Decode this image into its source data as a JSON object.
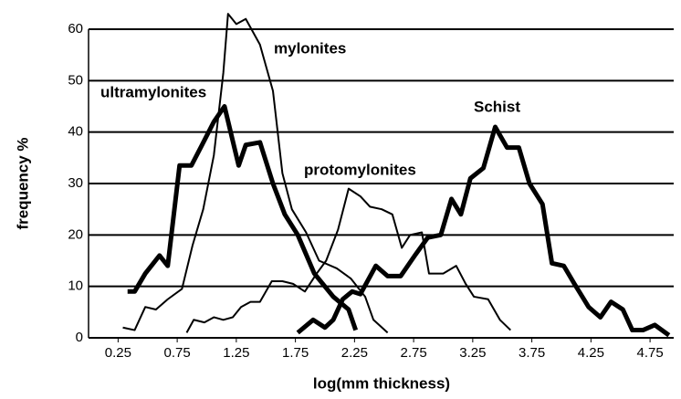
{
  "chart_data": {
    "type": "line",
    "xlabel": "log(mm thickness)",
    "ylabel": "frequency  %",
    "xlim": [
      0,
      4.95
    ],
    "ylim": [
      0,
      60
    ],
    "xticks": [
      0.25,
      0.75,
      1.25,
      1.75,
      2.25,
      2.75,
      3.25,
      3.75,
      4.25,
      4.75
    ],
    "yticks": [
      0,
      10,
      20,
      30,
      40,
      50,
      60
    ],
    "grid": true,
    "series": [
      {
        "name": "mylonites",
        "color": "#000000",
        "line_width": 2,
        "x": [
          0.29,
          0.39,
          0.48,
          0.57,
          0.67,
          0.79,
          0.88,
          0.97,
          1.06,
          1.14,
          1.18,
          1.25,
          1.33,
          1.45,
          1.56,
          1.64,
          1.72,
          1.84,
          1.95,
          2.1,
          2.22,
          2.34,
          2.41,
          2.53
        ],
        "values": [
          2,
          1.5,
          6,
          5.5,
          7.5,
          9.5,
          18,
          25,
          35.5,
          51.5,
          63,
          61,
          62,
          57,
          48,
          32,
          25,
          20.5,
          15,
          13.5,
          11.5,
          8,
          3.5,
          1
        ]
      },
      {
        "name": "ultramylonites",
        "color": "#000000",
        "line_width": 5,
        "x": [
          0.33,
          0.39,
          0.48,
          0.6,
          0.67,
          0.77,
          0.87,
          0.96,
          1.06,
          1.15,
          1.27,
          1.33,
          1.45,
          1.56,
          1.66,
          1.77,
          1.91,
          2.07,
          2.2,
          2.26
        ],
        "values": [
          9,
          9,
          12.5,
          16,
          14,
          33.5,
          33.5,
          37.5,
          42,
          45,
          33.5,
          37.5,
          38,
          30,
          24,
          20,
          12.5,
          8,
          5.5,
          1.5
        ]
      },
      {
        "name": "protomylonites",
        "color": "#000000",
        "line_width": 2,
        "x": [
          0.83,
          0.89,
          0.98,
          1.06,
          1.14,
          1.22,
          1.29,
          1.37,
          1.45,
          1.55,
          1.64,
          1.73,
          1.83,
          1.93,
          2.01,
          2.11,
          2.2,
          2.3,
          2.38,
          2.48,
          2.57,
          2.65,
          2.72,
          2.82,
          2.88,
          3.0,
          3.11,
          3.19,
          3.26,
          3.38,
          3.48,
          3.57
        ],
        "values": [
          1,
          3.5,
          3,
          4,
          3.5,
          4,
          6,
          7,
          7,
          11,
          11,
          10.5,
          9,
          12.5,
          15,
          21,
          29,
          27.5,
          25.5,
          25,
          24,
          17.5,
          20,
          20.5,
          12.5,
          12.5,
          14,
          10.5,
          8,
          7.5,
          3.5,
          1.5
        ]
      },
      {
        "name": "Schist",
        "color": "#000000",
        "line_width": 5,
        "x": [
          1.77,
          1.9,
          2.0,
          2.07,
          2.15,
          2.23,
          2.3,
          2.43,
          2.53,
          2.64,
          2.76,
          2.87,
          2.98,
          3.07,
          3.15,
          3.23,
          3.34,
          3.44,
          3.54,
          3.64,
          3.73,
          3.84,
          3.92,
          4.02,
          4.11,
          4.23,
          4.33,
          4.42,
          4.52,
          4.6,
          4.69,
          4.79,
          4.91
        ],
        "values": [
          1,
          3.5,
          2,
          3.5,
          7.5,
          9,
          8.5,
          14,
          12,
          12,
          16,
          19.5,
          20,
          27,
          24,
          31,
          33,
          41,
          37,
          37,
          30,
          26,
          14.5,
          14,
          10.5,
          6,
          4,
          7,
          5.5,
          1.5,
          1.5,
          2.5,
          0.5
        ]
      }
    ]
  }
}
